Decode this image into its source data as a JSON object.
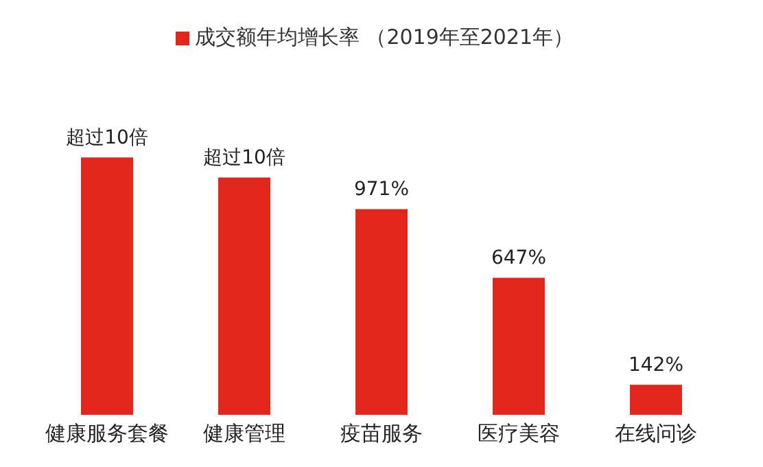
{
  "chart_data": {
    "type": "bar",
    "categories": [
      "健康服务套餐",
      "健康管理",
      "疫苗服务",
      "医疗美容",
      "在线问诊"
    ],
    "series": [
      {
        "name": "成交额年均增长率 （2019年至2021年）",
        "color": "#e3261b",
        "values": [
          1215,
          1120,
          971,
          647,
          142
        ],
        "value_labels": [
          "超过10倍",
          "超过10倍",
          "971%",
          "647%",
          "142%"
        ]
      }
    ],
    "legend": "top",
    "grid": false
  }
}
